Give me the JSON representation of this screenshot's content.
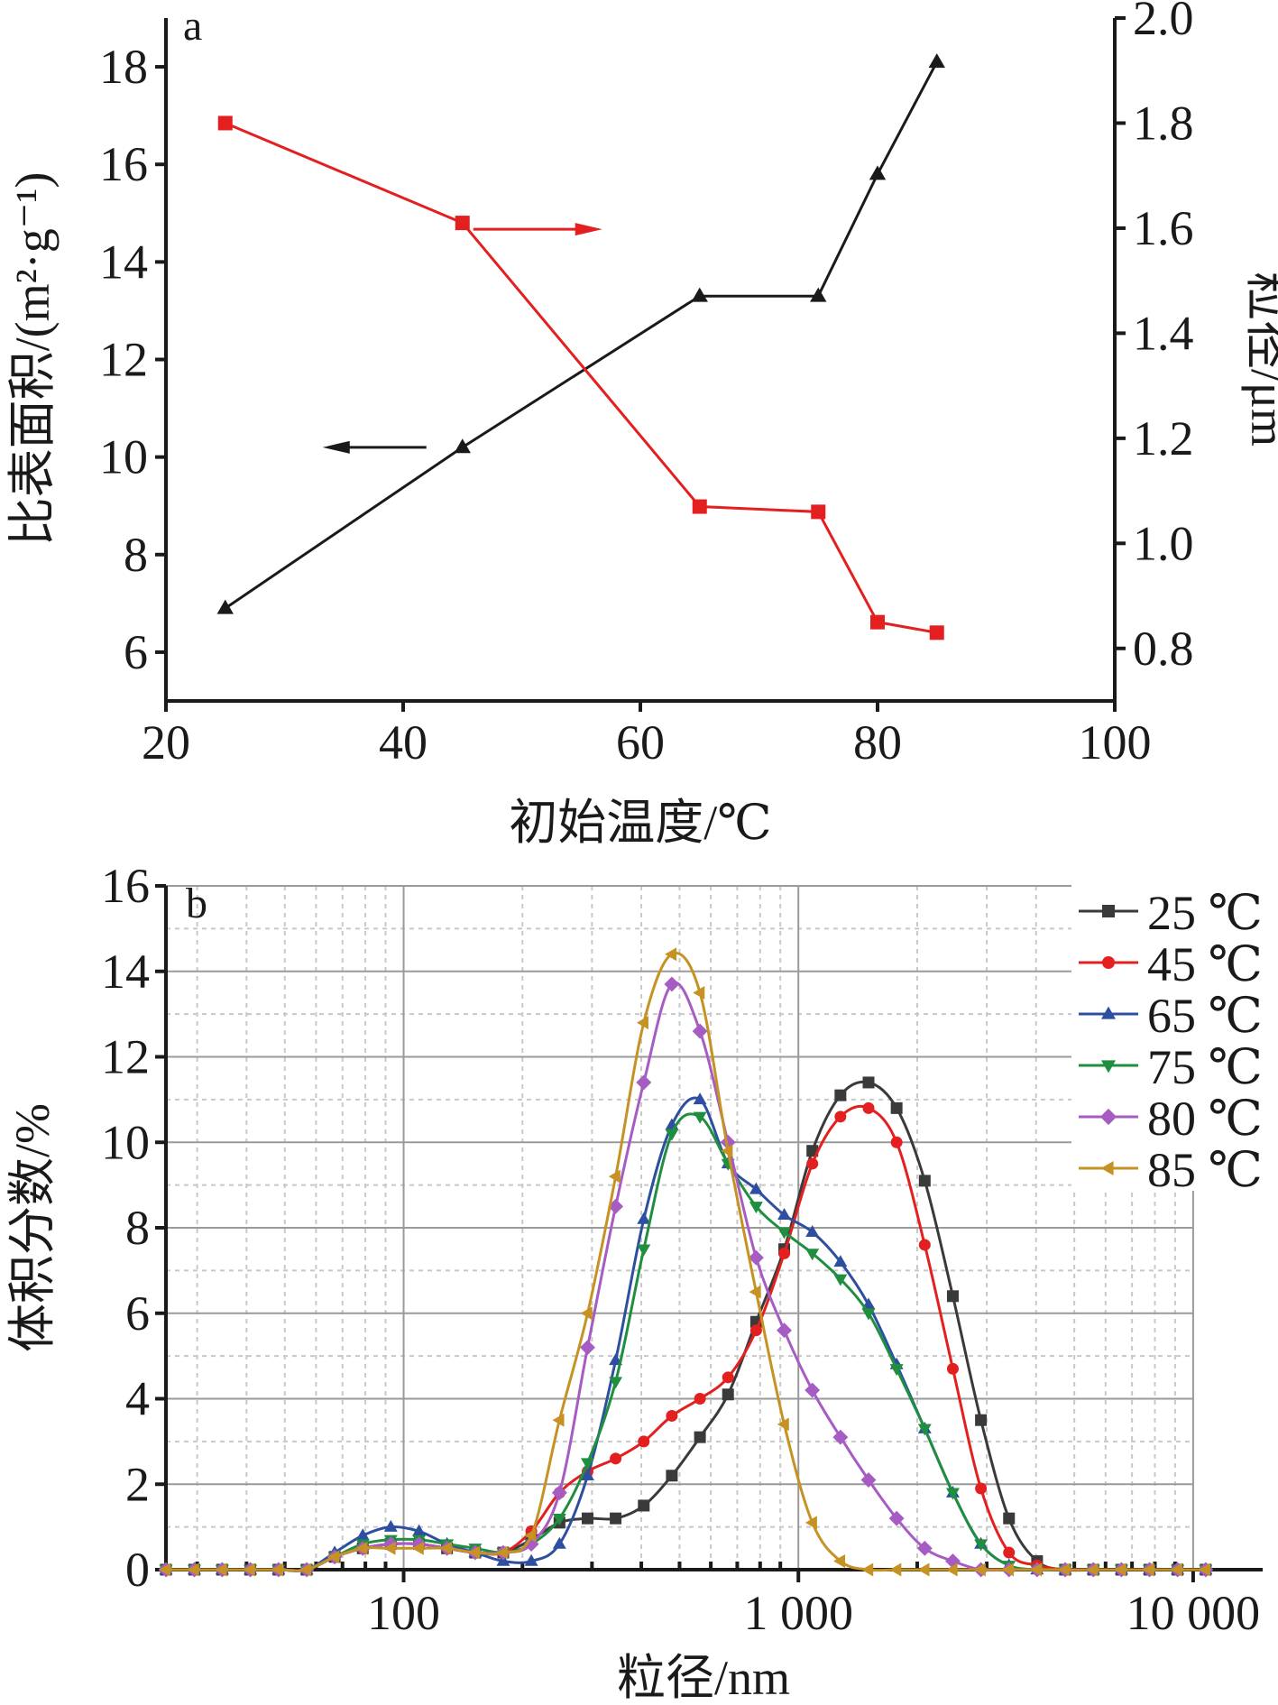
{
  "chart_data": [
    {
      "type": "line",
      "panel_label": "a",
      "xlabel": "初始温度/℃",
      "ylabel_left": "比表面积/(m²·g⁻¹)",
      "ylabel_right": "粒径/μm",
      "xlim": [
        20,
        100
      ],
      "ylim_left": [
        5,
        19
      ],
      "ylim_right": [
        0.7,
        2.0
      ],
      "xticks": [
        20,
        40,
        60,
        80,
        100
      ],
      "yticks_left": [
        6,
        8,
        10,
        12,
        14,
        16,
        18
      ],
      "yticks_right": [
        0.8,
        1.0,
        1.2,
        1.4,
        1.6,
        1.8,
        2.0
      ],
      "yticks_right_labels": [
        "0.8",
        "1.0",
        "1.2",
        "1.4",
        "1.6",
        "1.8",
        "2.0"
      ],
      "series": [
        {
          "axis": "left",
          "color": "#1a1a1a",
          "marker": "triangle",
          "x": [
            25,
            45,
            65,
            75,
            80,
            85
          ],
          "y": [
            6.9,
            10.2,
            13.3,
            13.3,
            15.8,
            18.1
          ]
        },
        {
          "axis": "right",
          "color": "#e41f1f",
          "marker": "square",
          "x": [
            25,
            45,
            65,
            75,
            80,
            85
          ],
          "y": [
            1.8,
            1.61,
            1.07,
            1.06,
            0.85,
            0.83
          ]
        }
      ],
      "annotations": [
        {
          "direction": "left",
          "axis": "left",
          "color": "#1a1a1a"
        },
        {
          "direction": "right",
          "axis": "right",
          "color": "#e41f1f"
        }
      ]
    },
    {
      "type": "line",
      "panel_label": "b",
      "xlabel": "粒径/nm",
      "ylabel": "体积分数/%",
      "xscale": "log",
      "xlim": [
        25,
        15000
      ],
      "ylim": [
        0,
        16
      ],
      "xticks": [
        100,
        1000,
        10000
      ],
      "xtick_labels": [
        "100",
        "1 000",
        "10 000"
      ],
      "yticks": [
        0,
        2,
        4,
        6,
        8,
        10,
        12,
        14,
        16
      ],
      "grid": true,
      "legend_position": "top-right",
      "x": [
        25,
        29.5,
        34.7,
        40.9,
        48.2,
        56.8,
        66.9,
        78.8,
        92.8,
        109.4,
        128.8,
        151.8,
        178.8,
        210.6,
        248.2,
        292.4,
        344.4,
        405.8,
        478,
        563.2,
        663.4,
        781.6,
        920.8,
        1084.8,
        1278,
        1505.6,
        1773.6,
        2089.6,
        2461.6,
        2900,
        3416,
        4024,
        4740,
        5586,
        6580,
        7750,
        9130,
        10760
      ],
      "series": [
        {
          "name": "25 ℃",
          "color": "#3a3a3a",
          "marker": "square",
          "values": [
            0,
            0,
            0,
            0,
            0,
            0,
            0.3,
            0.5,
            0.6,
            0.6,
            0.5,
            0.4,
            0.4,
            0.7,
            1.1,
            1.2,
            1.2,
            1.5,
            2.2,
            3.1,
            4.1,
            5.8,
            7.5,
            9.8,
            11.1,
            11.4,
            10.8,
            9.1,
            6.4,
            3.5,
            1.2,
            0.2,
            0,
            0,
            0,
            0,
            0,
            0
          ]
        },
        {
          "name": "45 ℃",
          "color": "#e41f1f",
          "marker": "circle",
          "values": [
            0,
            0,
            0,
            0,
            0,
            0,
            0.3,
            0.5,
            0.6,
            0.6,
            0.5,
            0.4,
            0.4,
            0.9,
            1.8,
            2.3,
            2.6,
            3.0,
            3.6,
            4.0,
            4.5,
            5.6,
            7.4,
            9.5,
            10.6,
            10.8,
            10.0,
            7.6,
            4.7,
            1.9,
            0.4,
            0.1,
            0,
            0,
            0,
            0,
            0,
            0
          ]
        },
        {
          "name": "65 ℃",
          "color": "#2e4fa0",
          "marker": "triangle-up",
          "values": [
            0,
            0,
            0,
            0,
            0,
            0,
            0.4,
            0.8,
            1.0,
            0.9,
            0.6,
            0.4,
            0.2,
            0.2,
            0.6,
            2.2,
            4.9,
            8.2,
            10.4,
            11.0,
            9.5,
            8.9,
            8.3,
            7.9,
            7.2,
            6.2,
            4.8,
            3.3,
            1.8,
            0.6,
            0.1,
            0,
            0,
            0,
            0,
            0,
            0,
            0
          ]
        },
        {
          "name": "75 ℃",
          "color": "#1f8f3f",
          "marker": "triangle-down",
          "values": [
            0,
            0,
            0,
            0,
            0,
            0,
            0.3,
            0.6,
            0.7,
            0.7,
            0.6,
            0.5,
            0.4,
            0.6,
            1.2,
            2.5,
            4.4,
            7.5,
            10.2,
            10.6,
            9.5,
            8.5,
            7.9,
            7.4,
            6.8,
            6.0,
            4.7,
            3.3,
            1.8,
            0.6,
            0.1,
            0,
            0,
            0,
            0,
            0,
            0,
            0
          ]
        },
        {
          "name": "80 ℃",
          "color": "#a65cc2",
          "marker": "diamond",
          "values": [
            0,
            0,
            0,
            0,
            0,
            0,
            0.3,
            0.5,
            0.6,
            0.6,
            0.5,
            0.4,
            0.4,
            0.6,
            1.8,
            5.2,
            8.5,
            11.4,
            13.7,
            12.6,
            10.0,
            7.3,
            5.6,
            4.2,
            3.1,
            2.1,
            1.2,
            0.5,
            0.2,
            0,
            0,
            0,
            0,
            0,
            0,
            0,
            0,
            0
          ]
        },
        {
          "name": "85 ℃",
          "color": "#c69223",
          "marker": "triangle-left",
          "values": [
            0,
            0,
            0,
            0,
            0,
            0,
            0.3,
            0.5,
            0.5,
            0.5,
            0.5,
            0.4,
            0.4,
            0.8,
            3.5,
            6.0,
            9.2,
            12.8,
            14.4,
            13.5,
            9.8,
            6.5,
            3.4,
            1.1,
            0.2,
            0,
            0,
            0,
            0,
            0,
            0,
            0,
            0,
            0,
            0,
            0,
            0,
            0
          ]
        }
      ]
    }
  ]
}
